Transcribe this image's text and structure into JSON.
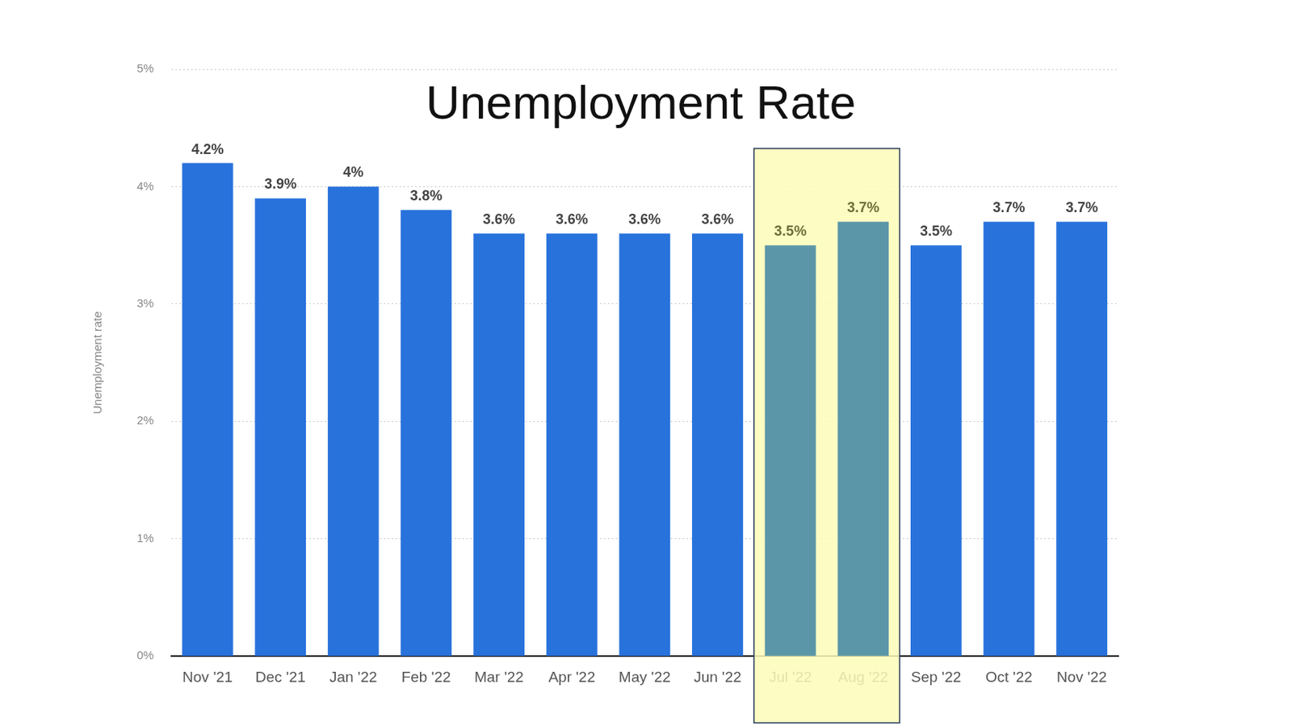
{
  "chart_data": {
    "type": "bar",
    "title": "Unemployment Rate",
    "y_label": "Unemployment rate",
    "categories": [
      "Nov '21",
      "Dec '21",
      "Jan '22",
      "Feb '22",
      "Mar '22",
      "Apr '22",
      "May '22",
      "Jun '22",
      "Jul '22",
      "Aug '22",
      "Sep '22",
      "Oct '22",
      "Nov '22"
    ],
    "values": [
      4.2,
      3.9,
      4,
      3.8,
      3.6,
      3.6,
      3.6,
      3.6,
      3.5,
      3.7,
      3.5,
      3.7,
      3.7
    ],
    "value_labels": [
      "4.2%",
      "3.9%",
      "4%",
      "3.8%",
      "3.6%",
      "3.6%",
      "3.6%",
      "3.6%",
      "3.5%",
      "3.7%",
      "3.5%",
      "3.7%",
      "3.7%"
    ],
    "colors": [
      "#2872dc",
      "#2872dc",
      "#2872dc",
      "#2872dc",
      "#2872dc",
      "#2872dc",
      "#2872dc",
      "#2872dc",
      "#5b96a8",
      "#5b96a8",
      "#2872dc",
      "#2872dc",
      "#2872dc"
    ],
    "ylim": [
      0,
      5
    ],
    "yticks": [
      {
        "value": 0,
        "label": "0%"
      },
      {
        "value": 1,
        "label": "1%"
      },
      {
        "value": 2,
        "label": "2%"
      },
      {
        "value": 3,
        "label": "3%"
      },
      {
        "value": 4,
        "label": "4%"
      },
      {
        "value": 5,
        "label": "5%"
      }
    ],
    "grid": true,
    "data_labels": true
  }
}
